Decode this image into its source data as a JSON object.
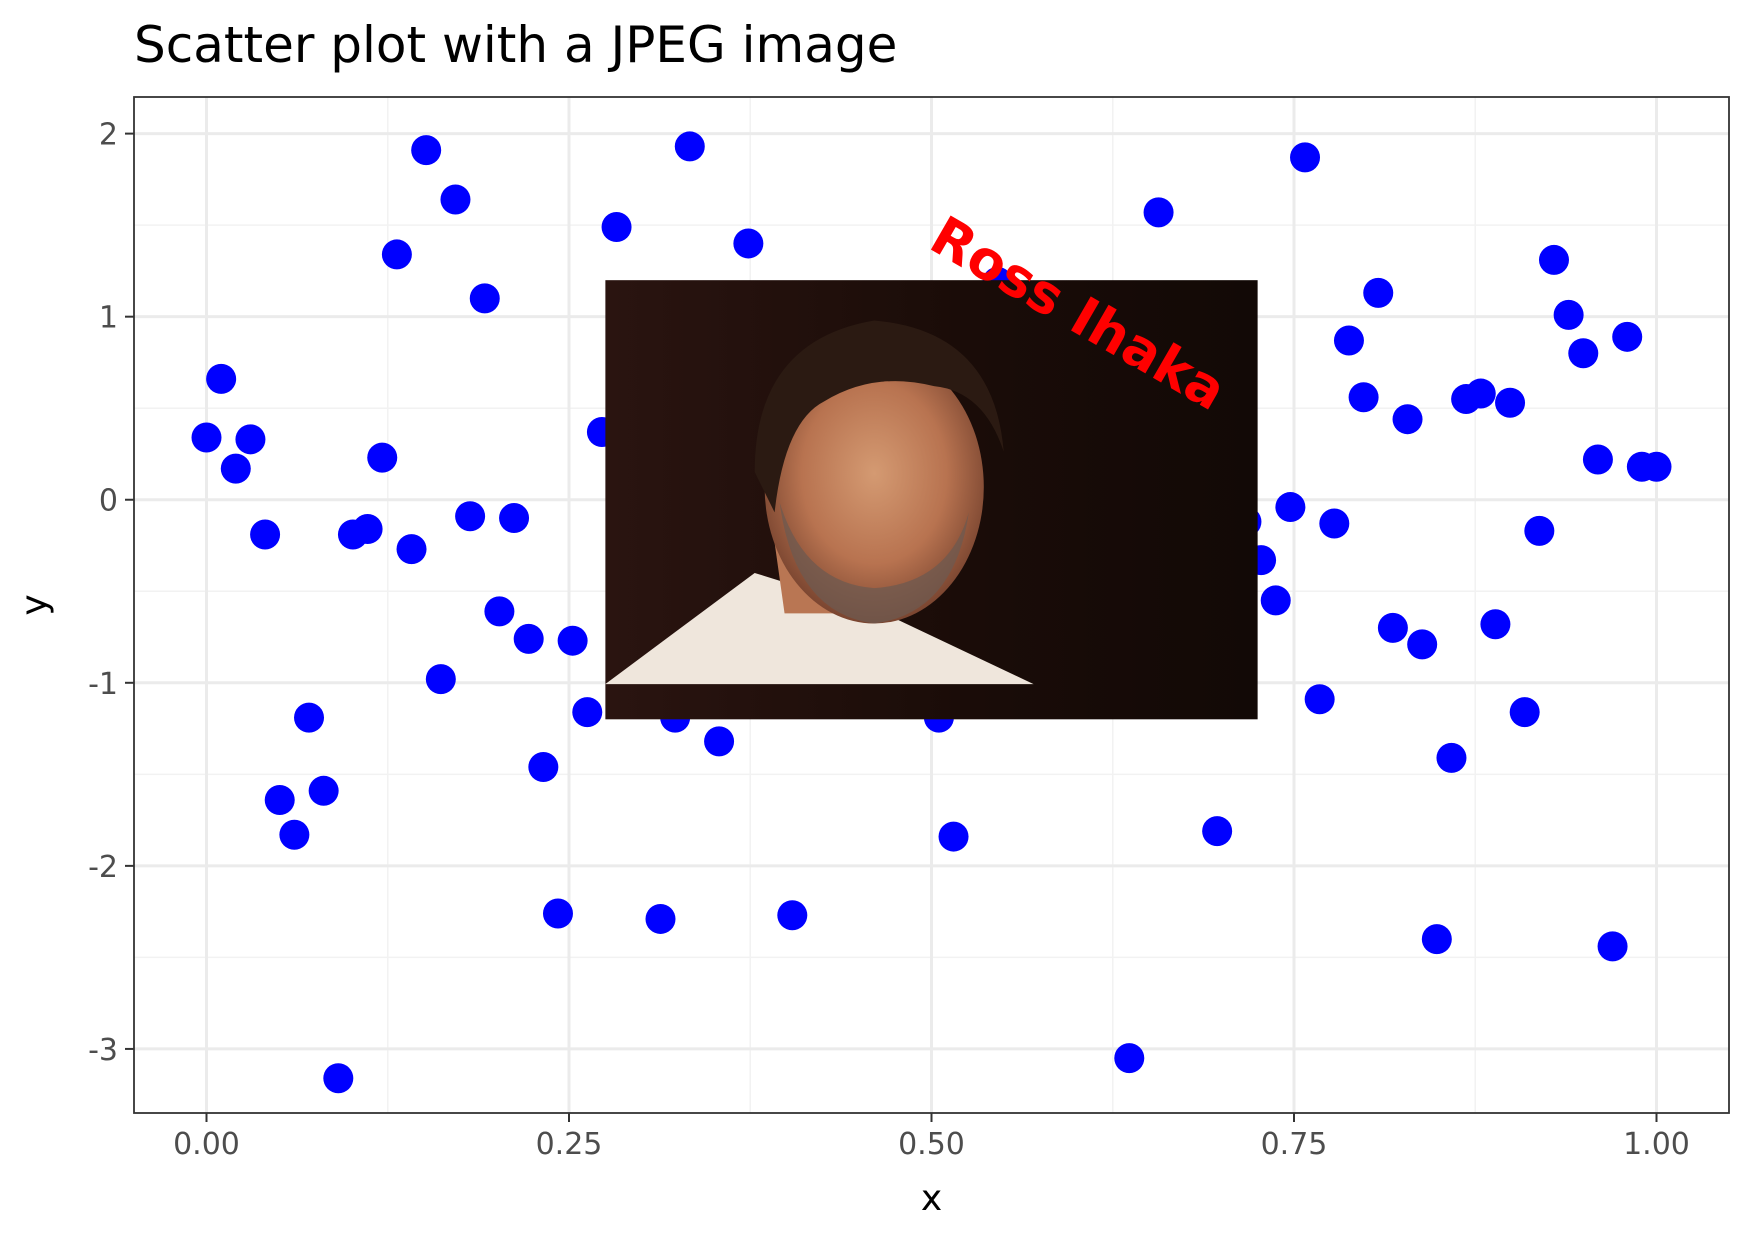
{
  "chart_data": {
    "type": "scatter",
    "title": "Scatter plot with a JPEG image",
    "xlabel": "x",
    "ylabel": "y",
    "xlim": [
      -0.05,
      1.05
    ],
    "ylim": [
      -3.35,
      2.2
    ],
    "x_ticks": [
      0,
      0.25,
      0.5,
      0.75,
      1
    ],
    "x_tick_labels": [
      "0.00",
      "0.25",
      "0.50",
      "0.75",
      "1.00"
    ],
    "y_ticks": [
      -3,
      -2,
      -1,
      0,
      1,
      2
    ],
    "y_tick_labels": [
      "-3",
      "-2",
      "-1",
      "0",
      "1",
      "2"
    ],
    "grid": true,
    "point_color": "#0000ff",
    "annotation": {
      "text": "Ross Ihaka",
      "color": "#ff0000",
      "x": 0.6,
      "y": 1.0,
      "angle_deg": 30
    },
    "image": {
      "x_range": [
        0.275,
        0.725
      ],
      "y_range": [
        -1.2,
        1.2
      ],
      "description": "photo-portrait"
    },
    "points": [
      {
        "x": 0.0,
        "y": 0.34
      },
      {
        "x": 0.0101,
        "y": 0.66
      },
      {
        "x": 0.0202,
        "y": 0.17
      },
      {
        "x": 0.0303,
        "y": 0.33
      },
      {
        "x": 0.0404,
        "y": -0.19
      },
      {
        "x": 0.0505,
        "y": -1.64
      },
      {
        "x": 0.0606,
        "y": -1.83
      },
      {
        "x": 0.0707,
        "y": -1.19
      },
      {
        "x": 0.0808,
        "y": -1.59
      },
      {
        "x": 0.0909,
        "y": -3.16
      },
      {
        "x": 0.101,
        "y": -0.19
      },
      {
        "x": 0.1111,
        "y": -0.16
      },
      {
        "x": 0.1212,
        "y": 0.23
      },
      {
        "x": 0.1313,
        "y": 1.34
      },
      {
        "x": 0.1414,
        "y": -0.27
      },
      {
        "x": 0.1515,
        "y": 1.91
      },
      {
        "x": 0.1616,
        "y": -0.98
      },
      {
        "x": 0.1717,
        "y": 1.64
      },
      {
        "x": 0.1818,
        "y": -0.09
      },
      {
        "x": 0.1919,
        "y": 1.1
      },
      {
        "x": 0.202,
        "y": -0.61
      },
      {
        "x": 0.2121,
        "y": -0.1
      },
      {
        "x": 0.2222,
        "y": -0.76
      },
      {
        "x": 0.2323,
        "y": -1.46
      },
      {
        "x": 0.2424,
        "y": -2.26
      },
      {
        "x": 0.2525,
        "y": -0.77
      },
      {
        "x": 0.2626,
        "y": -1.16
      },
      {
        "x": 0.2727,
        "y": 0.37
      },
      {
        "x": 0.2828,
        "y": 1.49
      },
      {
        "x": 0.3131,
        "y": -2.29
      },
      {
        "x": 0.3232,
        "y": -1.19
      },
      {
        "x": 0.3333,
        "y": 1.93
      },
      {
        "x": 0.3535,
        "y": -1.32
      },
      {
        "x": 0.3737,
        "y": 1.4
      },
      {
        "x": 0.404,
        "y": -2.27
      },
      {
        "x": 0.5051,
        "y": -1.19
      },
      {
        "x": 0.5152,
        "y": -1.84
      },
      {
        "x": 0.5455,
        "y": 1.19
      },
      {
        "x": 0.6364,
        "y": -3.05
      },
      {
        "x": 0.6566,
        "y": 1.57
      },
      {
        "x": 0.697,
        "y": -1.81
      },
      {
        "x": 0.7172,
        "y": -0.12
      },
      {
        "x": 0.7273,
        "y": -0.33
      },
      {
        "x": 0.7374,
        "y": -0.55
      },
      {
        "x": 0.7475,
        "y": -0.04
      },
      {
        "x": 0.7576,
        "y": 1.87
      },
      {
        "x": 0.7677,
        "y": -1.09
      },
      {
        "x": 0.7778,
        "y": -0.13
      },
      {
        "x": 0.7879,
        "y": 0.87
      },
      {
        "x": 0.798,
        "y": 0.56
      },
      {
        "x": 0.8081,
        "y": 1.13
      },
      {
        "x": 0.8182,
        "y": -0.7
      },
      {
        "x": 0.8283,
        "y": 0.44
      },
      {
        "x": 0.8384,
        "y": -0.79
      },
      {
        "x": 0.8485,
        "y": -2.4
      },
      {
        "x": 0.8586,
        "y": -1.41
      },
      {
        "x": 0.8687,
        "y": 0.55
      },
      {
        "x": 0.8788,
        "y": 0.58
      },
      {
        "x": 0.8889,
        "y": -0.68
      },
      {
        "x": 0.899,
        "y": 0.53
      },
      {
        "x": 0.9091,
        "y": -1.16
      },
      {
        "x": 0.9192,
        "y": -0.17
      },
      {
        "x": 0.9293,
        "y": 1.31
      },
      {
        "x": 0.9394,
        "y": 1.01
      },
      {
        "x": 0.9495,
        "y": 0.8
      },
      {
        "x": 0.9596,
        "y": 0.22
      },
      {
        "x": 0.9697,
        "y": -2.44
      },
      {
        "x": 0.9798,
        "y": 0.89
      },
      {
        "x": 0.9899,
        "y": 0.18
      },
      {
        "x": 1.0,
        "y": 0.18
      }
    ]
  }
}
